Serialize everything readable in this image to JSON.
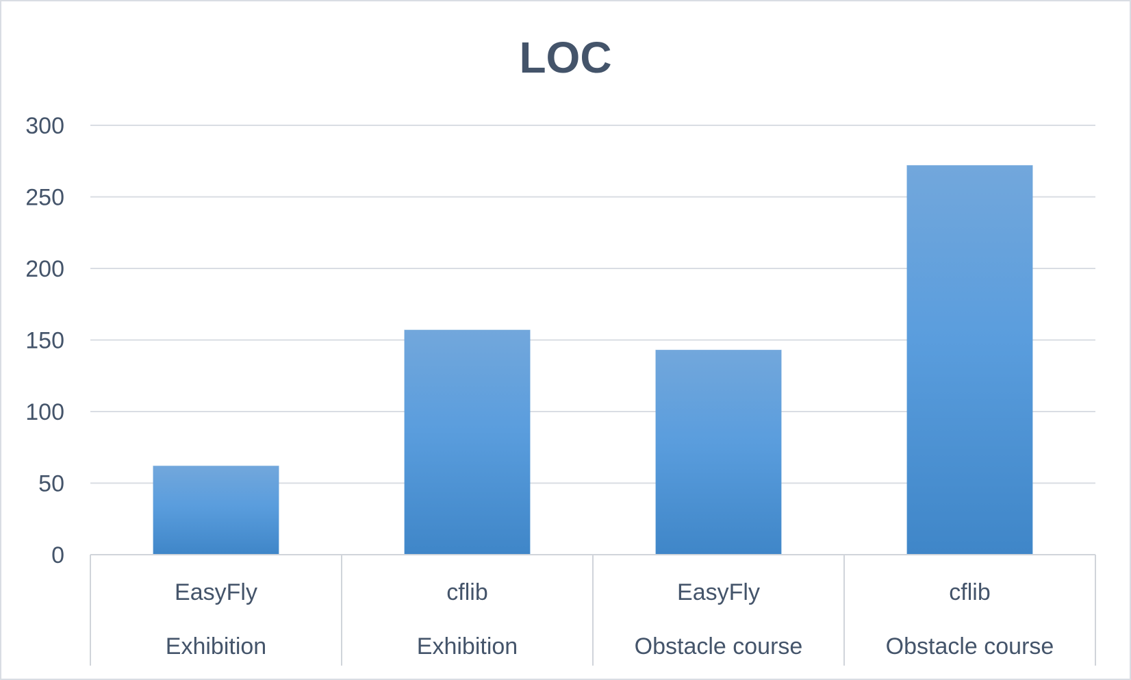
{
  "chart_data": {
    "type": "bar",
    "title": "LOC",
    "xlabel": "",
    "ylabel": "",
    "ylim": [
      0,
      300
    ],
    "y_ticks": [
      0,
      50,
      100,
      150,
      200,
      250,
      300
    ],
    "grid": true,
    "legend": "none",
    "categories": [
      {
        "label": "EasyFly",
        "group": "Exhibition"
      },
      {
        "label": "cflib",
        "group": "Exhibition"
      },
      {
        "label": "EasyFly",
        "group": "Obstacle course"
      },
      {
        "label": "cflib",
        "group": "Obstacle course"
      }
    ],
    "values": [
      62,
      157,
      143,
      272
    ],
    "colors": {
      "bar_top": "#72a7dc",
      "bar_bottom": "#3f86c8",
      "text": "#44546a",
      "grid": "#d9dde3",
      "axis": "#d0d4da"
    }
  }
}
